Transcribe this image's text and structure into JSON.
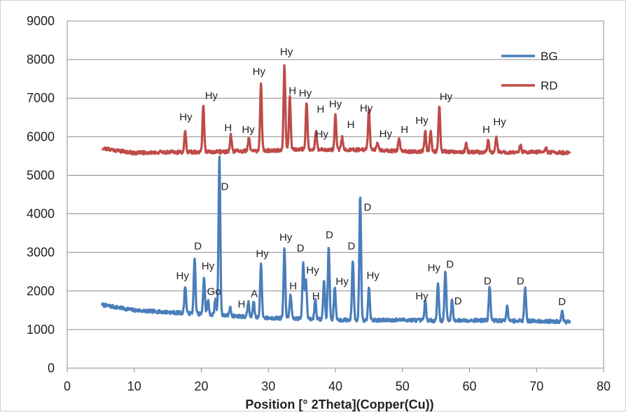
{
  "chart_data": {
    "type": "line",
    "title": "",
    "xlabel": "Position [°  2Theta](Copper(Cu))",
    "ylabel": "",
    "xlim": [
      0,
      80
    ],
    "ylim": [
      0,
      9000
    ],
    "x_ticks": [
      "0",
      "10",
      "20",
      "30",
      "40",
      "50",
      "60",
      "70",
      "80"
    ],
    "y_ticks": [
      "0",
      "1000",
      "2000",
      "3000",
      "4000",
      "5000",
      "6000",
      "7000",
      "8000",
      "9000"
    ],
    "grid": "horizontal",
    "legend_position": "top-right",
    "series": [
      {
        "name": "BG",
        "color": "#4a7ebb",
        "baseline": [
          [
            5.2,
            1640
          ],
          [
            10,
            1500
          ],
          [
            15,
            1450
          ],
          [
            20,
            1400
          ],
          [
            25,
            1350
          ],
          [
            30,
            1300
          ],
          [
            35,
            1280
          ],
          [
            40,
            1250
          ],
          [
            45,
            1240
          ],
          [
            50,
            1250
          ],
          [
            55,
            1230
          ],
          [
            60,
            1240
          ],
          [
            65,
            1230
          ],
          [
            70,
            1220
          ],
          [
            75,
            1200
          ]
        ],
        "peaks": [
          [
            17.6,
            2130
          ],
          [
            19.0,
            2850
          ],
          [
            20.4,
            2360
          ],
          [
            21.0,
            1750
          ],
          [
            22.1,
            1780
          ],
          [
            22.7,
            5500
          ],
          [
            24.3,
            1560
          ],
          [
            27.0,
            1720
          ],
          [
            27.8,
            1720
          ],
          [
            28.9,
            2700
          ],
          [
            32.4,
            3080
          ],
          [
            33.3,
            1920
          ],
          [
            35.2,
            2750
          ],
          [
            35.6,
            2300
          ],
          [
            37.0,
            1800
          ],
          [
            38.3,
            2280
          ],
          [
            39.0,
            3160
          ],
          [
            39.9,
            2110
          ],
          [
            42.6,
            2820
          ],
          [
            43.7,
            4490
          ],
          [
            45.0,
            2130
          ],
          [
            53.4,
            1720
          ],
          [
            55.3,
            2230
          ],
          [
            56.4,
            2530
          ],
          [
            57.4,
            1760
          ],
          [
            63.0,
            2120
          ],
          [
            65.6,
            1600
          ],
          [
            68.3,
            2110
          ],
          [
            73.8,
            1500
          ]
        ]
      },
      {
        "name": "RD",
        "color": "#be4b48",
        "baseline": [
          [
            5.2,
            5700
          ],
          [
            10,
            5580
          ],
          [
            15,
            5600
          ],
          [
            20,
            5600
          ],
          [
            25,
            5620
          ],
          [
            30,
            5640
          ],
          [
            35,
            5680
          ],
          [
            40,
            5660
          ],
          [
            45,
            5660
          ],
          [
            50,
            5620
          ],
          [
            55,
            5620
          ],
          [
            60,
            5600
          ],
          [
            65,
            5600
          ],
          [
            70,
            5600
          ],
          [
            75,
            5580
          ]
        ],
        "peaks": [
          [
            17.6,
            6150
          ],
          [
            20.3,
            6800
          ],
          [
            24.4,
            6030
          ],
          [
            27.1,
            5980
          ],
          [
            28.9,
            7350
          ],
          [
            32.4,
            7850
          ],
          [
            33.2,
            7050
          ],
          [
            35.7,
            6880
          ],
          [
            37.1,
            6120
          ],
          [
            40.0,
            6580
          ],
          [
            41.0,
            5980
          ],
          [
            45.0,
            6700
          ],
          [
            46.3,
            5850
          ],
          [
            49.5,
            5960
          ],
          [
            53.4,
            6130
          ],
          [
            54.2,
            6130
          ],
          [
            55.5,
            6780
          ],
          [
            59.5,
            5800
          ],
          [
            62.8,
            5930
          ],
          [
            64.0,
            6000
          ],
          [
            67.6,
            5780
          ],
          [
            71.4,
            5720
          ]
        ]
      }
    ],
    "annotations": [
      {
        "text": "Hy",
        "x": 17.7,
        "y": 6420,
        "series": "RD"
      },
      {
        "text": "Hy",
        "x": 21.5,
        "y": 6980,
        "series": "RD"
      },
      {
        "text": "H",
        "x": 24.0,
        "y": 6140,
        "series": "RD"
      },
      {
        "text": "Hy",
        "x": 27.0,
        "y": 6100,
        "series": "RD"
      },
      {
        "text": "Hy",
        "x": 28.6,
        "y": 7600,
        "series": "RD"
      },
      {
        "text": "Hy",
        "x": 32.7,
        "y": 8110,
        "series": "RD"
      },
      {
        "text": "H",
        "x": 33.6,
        "y": 7100,
        "series": "RD"
      },
      {
        "text": "Hy",
        "x": 35.5,
        "y": 7040,
        "series": "RD"
      },
      {
        "text": "H",
        "x": 37.8,
        "y": 6620,
        "series": "RD"
      },
      {
        "text": "Hy",
        "x": 38.0,
        "y": 5980,
        "series": "RD"
      },
      {
        "text": "Hy",
        "x": 40.0,
        "y": 6760,
        "series": "RD"
      },
      {
        "text": "H",
        "x": 42.3,
        "y": 6220,
        "series": "RD"
      },
      {
        "text": "Hy",
        "x": 44.6,
        "y": 6650,
        "series": "RD"
      },
      {
        "text": "Hy",
        "x": 47.5,
        "y": 5990,
        "series": "RD"
      },
      {
        "text": "H",
        "x": 50.3,
        "y": 6100,
        "series": "RD"
      },
      {
        "text": "Hy",
        "x": 52.9,
        "y": 6330,
        "series": "RD"
      },
      {
        "text": "Hy",
        "x": 56.5,
        "y": 6950,
        "series": "RD"
      },
      {
        "text": "H",
        "x": 62.5,
        "y": 6100,
        "series": "RD"
      },
      {
        "text": "Hy",
        "x": 64.5,
        "y": 6300,
        "series": "RD"
      },
      {
        "text": "D",
        "x": 23.5,
        "y": 4620,
        "series": "BG"
      },
      {
        "text": "D",
        "x": 44.8,
        "y": 4080,
        "series": "BG"
      },
      {
        "text": "D",
        "x": 19.5,
        "y": 3080,
        "series": "BG"
      },
      {
        "text": "Hy",
        "x": 17.2,
        "y": 2300,
        "series": "BG"
      },
      {
        "text": "Hy",
        "x": 21.0,
        "y": 2560,
        "series": "BG"
      },
      {
        "text": "Go",
        "x": 21.9,
        "y": 1900,
        "series": "BG"
      },
      {
        "text": "H",
        "x": 26.0,
        "y": 1570,
        "series": "BG"
      },
      {
        "text": "A",
        "x": 27.9,
        "y": 1840,
        "series": "BG"
      },
      {
        "text": "Hy",
        "x": 29.1,
        "y": 2880,
        "series": "BG"
      },
      {
        "text": "Hy",
        "x": 32.6,
        "y": 3300,
        "series": "BG"
      },
      {
        "text": "H",
        "x": 33.7,
        "y": 2040,
        "series": "BG"
      },
      {
        "text": "D",
        "x": 34.8,
        "y": 3020,
        "series": "BG"
      },
      {
        "text": "Hy",
        "x": 36.6,
        "y": 2450,
        "series": "BG"
      },
      {
        "text": "H",
        "x": 37.1,
        "y": 1780,
        "series": "BG"
      },
      {
        "text": "D",
        "x": 39.1,
        "y": 3370,
        "series": "BG"
      },
      {
        "text": "Hy",
        "x": 41.0,
        "y": 2160,
        "series": "BG"
      },
      {
        "text": "D",
        "x": 42.4,
        "y": 3080,
        "series": "BG"
      },
      {
        "text": "Hy",
        "x": 45.6,
        "y": 2310,
        "series": "BG"
      },
      {
        "text": "Hy",
        "x": 52.9,
        "y": 1780,
        "series": "BG"
      },
      {
        "text": "Hy",
        "x": 54.7,
        "y": 2510,
        "series": "BG"
      },
      {
        "text": "D",
        "x": 57.1,
        "y": 2600,
        "series": "BG"
      },
      {
        "text": "D",
        "x": 58.3,
        "y": 1650,
        "series": "BG"
      },
      {
        "text": "D",
        "x": 62.7,
        "y": 2170,
        "series": "BG"
      },
      {
        "text": "D",
        "x": 67.6,
        "y": 2170,
        "series": "BG"
      },
      {
        "text": "D",
        "x": 73.8,
        "y": 1630,
        "series": "BG"
      }
    ]
  }
}
